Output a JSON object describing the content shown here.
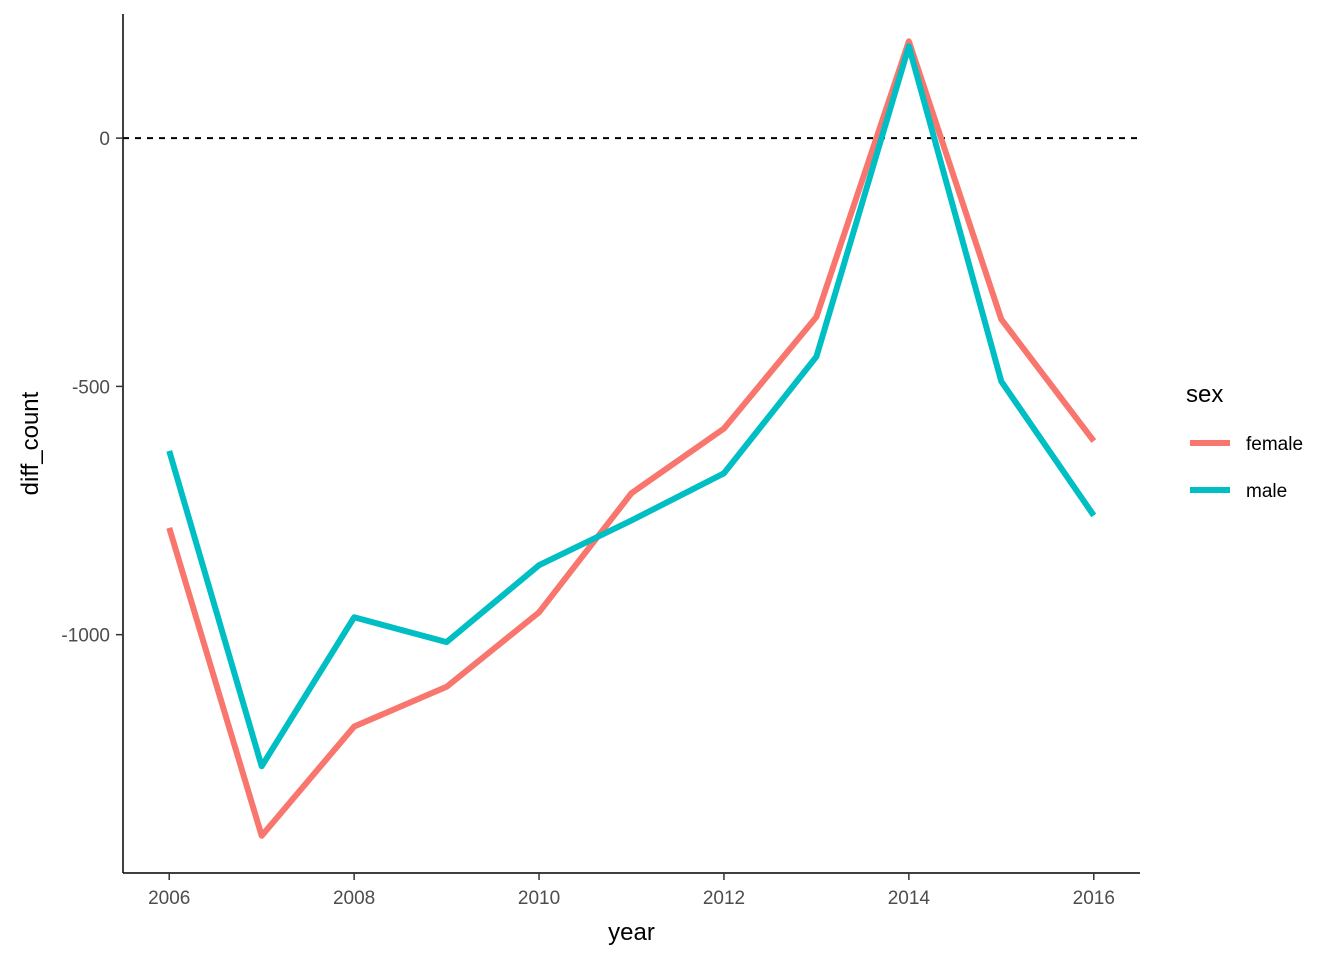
{
  "chart_data": {
    "type": "line",
    "title": "",
    "xlabel": "year",
    "ylabel": "diff_count",
    "x": [
      2006,
      2007,
      2008,
      2009,
      2010,
      2011,
      2012,
      2013,
      2014,
      2015,
      2016
    ],
    "x_ticks": [
      2006,
      2008,
      2010,
      2012,
      2014,
      2016
    ],
    "y_ticks": [
      -1000,
      -500,
      0
    ],
    "xlim": [
      2005.5,
      2016.5
    ],
    "ylim": [
      -1480,
      250
    ],
    "reference_line": {
      "y": 0,
      "style": "dashed",
      "color": "#000000"
    },
    "grid": false,
    "legend": {
      "title": "sex",
      "position": "right"
    },
    "series": [
      {
        "name": "female",
        "color": "#F8766D",
        "values": [
          -785,
          -1405,
          -1185,
          -1105,
          -955,
          -715,
          -585,
          -360,
          195,
          -365,
          -610
        ]
      },
      {
        "name": "male",
        "color": "#00BFC4",
        "values": [
          -630,
          -1265,
          -965,
          -1015,
          -860,
          -770,
          -675,
          -440,
          185,
          -490,
          -760
        ]
      }
    ]
  }
}
